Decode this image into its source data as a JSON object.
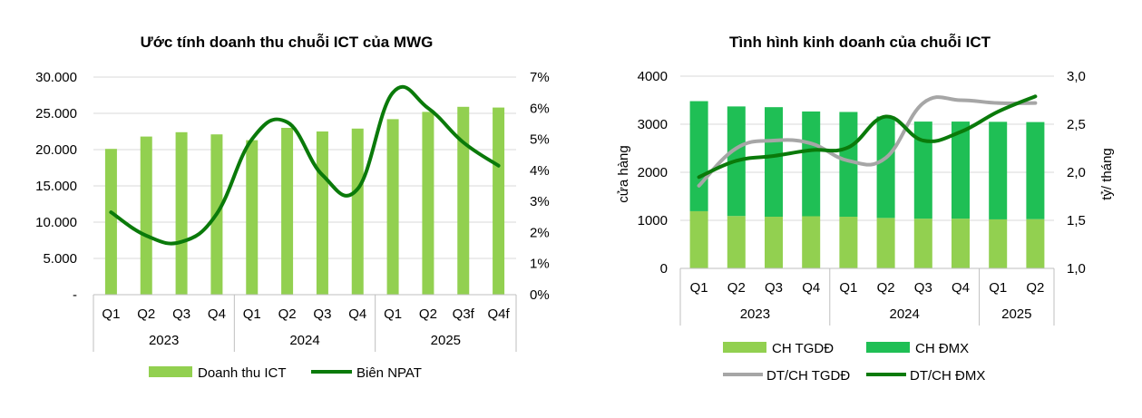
{
  "colors": {
    "light_green": "#92d050",
    "mid_green": "#1fbf55",
    "dark_green": "#0a7a0a",
    "gray": "#a6a6a6",
    "axis": "#bfbfbf"
  },
  "chart_data": [
    {
      "type": "bar",
      "title": "Ước tính doanh thu chuỗi ICT của MWG",
      "categories": [
        "Q1",
        "Q2",
        "Q3",
        "Q4",
        "Q1",
        "Q2",
        "Q3",
        "Q4",
        "Q1",
        "Q2",
        "Q3f",
        "Q4f"
      ],
      "groups": [
        {
          "label": "2023",
          "span": 4
        },
        {
          "label": "2024",
          "span": 4
        },
        {
          "label": "2025",
          "span": 4
        }
      ],
      "y_ticks": [
        "-",
        "5.000",
        "10.000",
        "15.000",
        "20.000",
        "25.000",
        "30.000"
      ],
      "ylim": [
        0,
        30000
      ],
      "y2_ticks": [
        "0%",
        "1%",
        "2%",
        "3%",
        "4%",
        "5%",
        "6%",
        "7%"
      ],
      "y2lim": [
        0,
        7
      ],
      "series": [
        {
          "name": "Doanh thu ICT",
          "kind": "bar",
          "axis": "left",
          "values": [
            20100,
            21800,
            22400,
            22100,
            21300,
            23000,
            22500,
            22900,
            24200,
            25200,
            25900,
            25800
          ]
        },
        {
          "name": "Biên NPAT",
          "kind": "line",
          "axis": "right",
          "values": [
            2.65,
            1.9,
            1.7,
            2.6,
            5.0,
            5.55,
            3.85,
            3.4,
            6.5,
            6.0,
            4.9,
            4.15
          ]
        }
      ],
      "legend": [
        "Doanh thu ICT",
        "Biên NPAT"
      ]
    },
    {
      "type": "bar",
      "title": "Tình hình kinh doanh của chuỗi ICT",
      "categories": [
        "Q1",
        "Q2",
        "Q3",
        "Q4",
        "Q1",
        "Q2",
        "Q3",
        "Q4",
        "Q1",
        "Q2"
      ],
      "groups": [
        {
          "label": "2023",
          "span": 4
        },
        {
          "label": "2024",
          "span": 4
        },
        {
          "label": "2025",
          "span": 2
        }
      ],
      "ylabel": "cửa hàng",
      "y2label": "tỷ/ tháng",
      "y_ticks": [
        "0",
        "1000",
        "2000",
        "3000",
        "4000"
      ],
      "ylim": [
        0,
        4000
      ],
      "y2_ticks": [
        "1,0",
        "1,5",
        "2,0",
        "2,5",
        "3,0"
      ],
      "y2lim": [
        1.0,
        3.0
      ],
      "series": [
        {
          "name": "CH TGDĐ",
          "kind": "stacked_bar",
          "axis": "left",
          "values": [
            1190,
            1090,
            1075,
            1085,
            1075,
            1050,
            1035,
            1035,
            1020,
            1025
          ]
        },
        {
          "name": "CH ĐMX",
          "kind": "stacked_bar",
          "axis": "left",
          "values": [
            2290,
            2280,
            2280,
            2180,
            2180,
            2110,
            2020,
            2020,
            2030,
            2020
          ]
        },
        {
          "name": "DT/CH TGDĐ",
          "kind": "line",
          "axis": "right",
          "values": [
            1.86,
            2.25,
            2.33,
            2.3,
            2.12,
            2.15,
            2.72,
            2.75,
            2.72,
            2.72
          ]
        },
        {
          "name": "DT/CH ĐMX",
          "kind": "line",
          "axis": "right",
          "values": [
            1.95,
            2.12,
            2.17,
            2.23,
            2.26,
            2.58,
            2.33,
            2.42,
            2.63,
            2.79
          ]
        }
      ],
      "legend": [
        "CH TGDĐ",
        "CH ĐMX",
        "DT/CH TGDĐ",
        "DT/CH ĐMX"
      ]
    }
  ]
}
